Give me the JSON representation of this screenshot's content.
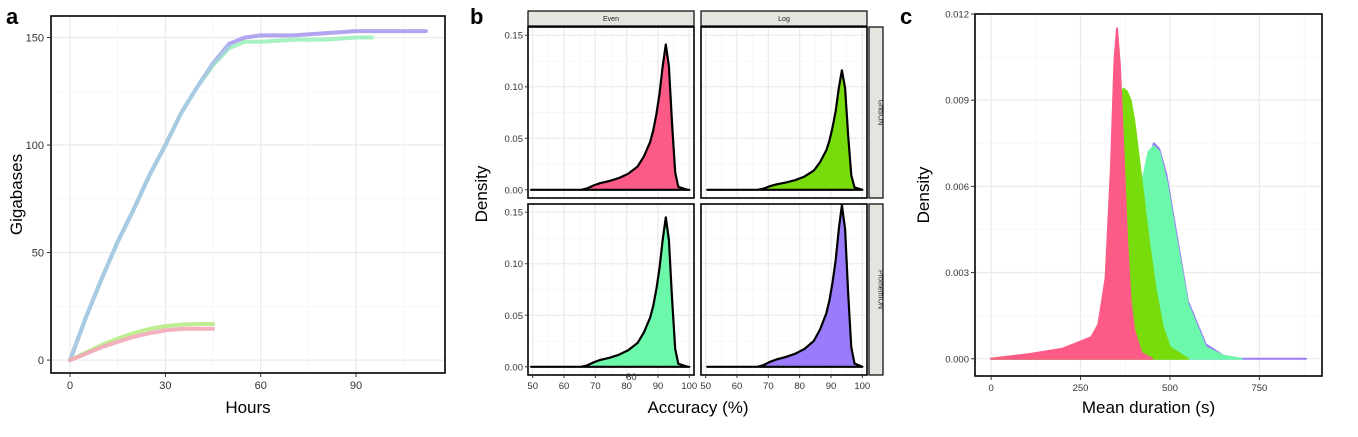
{
  "panels": {
    "a": {
      "letter": "a"
    },
    "b": {
      "letter": "b"
    },
    "c": {
      "letter": "c"
    }
  },
  "chart_data": [
    {
      "type": "line",
      "xlabel": "Hours",
      "ylabel": "Gigabases",
      "xlim": [
        -6,
        118
      ],
      "ylim": [
        -6,
        160
      ],
      "x_ticks": [
        0,
        30,
        60,
        90
      ],
      "y_ticks": [
        0,
        50,
        100,
        150
      ],
      "grid": true,
      "series": [
        {
          "color": "#a99bee",
          "x": [
            0,
            5,
            10,
            15,
            20,
            25,
            30,
            35,
            40,
            45,
            50,
            55,
            60,
            70,
            80,
            90,
            100,
            112
          ],
          "y": [
            0,
            20,
            38,
            55,
            70,
            86,
            100,
            115,
            127,
            138,
            147,
            150,
            151,
            151,
            152,
            153,
            153,
            153
          ]
        },
        {
          "color": "#9ff0bd",
          "x": [
            0,
            5,
            10,
            15,
            20,
            25,
            30,
            35,
            40,
            45,
            50,
            55,
            60,
            70,
            80,
            90,
            95
          ],
          "y": [
            0,
            20,
            38,
            55,
            70,
            86,
            100,
            115,
            127,
            137,
            145,
            148,
            148,
            149,
            149,
            150,
            150
          ]
        },
        {
          "color": "#a9c6e6",
          "x": [
            0,
            5,
            10,
            15,
            20,
            25,
            30,
            35,
            40,
            45,
            50
          ],
          "y": [
            0,
            20,
            38,
            55,
            70,
            86,
            100,
            115,
            127,
            138,
            146
          ]
        },
        {
          "color": "#b7eb86",
          "x": [
            0,
            5,
            10,
            15,
            20,
            25,
            30,
            35,
            40,
            45
          ],
          "y": [
            0,
            3.5,
            7,
            10,
            12.5,
            14.5,
            15.8,
            16.5,
            16.8,
            16.8
          ]
        },
        {
          "color": "#f2a7b8",
          "x": [
            0,
            5,
            10,
            15,
            20,
            25,
            30,
            35,
            40,
            45
          ],
          "y": [
            0,
            3,
            6,
            8.5,
            10.8,
            12.5,
            13.8,
            14.5,
            14.6,
            14.6
          ]
        }
      ]
    },
    {
      "type": "area",
      "xlabel": "Accuracy (%)",
      "ylabel": "Density",
      "xlim": [
        48.5,
        101.5
      ],
      "ylim": [
        -0.008,
        0.158
      ],
      "x_ticks": [
        50,
        60,
        70,
        80,
        90,
        100
      ],
      "y_ticks": [
        0.0,
        0.05,
        0.1,
        0.15
      ],
      "y_tick_labels": [
        "0.00",
        "0.05",
        "0.10",
        "0.15"
      ],
      "stray_label": {
        "text": "80",
        "x": 81.5,
        "y": -0.013
      },
      "facet_columns": [
        "Even",
        "Log"
      ],
      "facet_rows": [
        "GridION",
        "PromethION"
      ],
      "facets": [
        {
          "column": "Even",
          "row": "GridION",
          "color": "#fd5b87",
          "peak_x": 92.5,
          "peak_y": 0.141
        },
        {
          "column": "Log",
          "row": "GridION",
          "color": "#78db0b",
          "peak_x": 93.5,
          "peak_y": 0.116
        },
        {
          "column": "Even",
          "row": "PromethION",
          "color": "#6cf8ab",
          "peak_x": 92.5,
          "peak_y": 0.145
        },
        {
          "column": "Log",
          "row": "PromethION",
          "color": "#9a7bfb",
          "peak_x": 93.5,
          "peak_y": 0.157
        }
      ],
      "shared_curve_x": [
        50,
        66,
        68,
        70,
        72,
        75,
        78,
        81,
        84,
        86,
        88,
        89,
        90,
        91,
        92,
        93,
        94,
        95,
        96,
        97,
        100
      ],
      "shared_curve_fraction": [
        0,
        0,
        0.01,
        0.03,
        0.045,
        0.06,
        0.08,
        0.11,
        0.16,
        0.23,
        0.33,
        0.41,
        0.52,
        0.66,
        0.85,
        1.0,
        0.85,
        0.45,
        0.12,
        0.02,
        0
      ]
    },
    {
      "type": "area",
      "xlabel": "Mean duration (s)",
      "ylabel": "Density",
      "xlim": [
        -45,
        925
      ],
      "ylim": [
        -0.0006,
        0.012
      ],
      "x_ticks": [
        0,
        250,
        500,
        750
      ],
      "y_ticks": [
        0.0,
        0.003,
        0.006,
        0.009,
        0.012
      ],
      "y_tick_labels": [
        "0.000",
        "0.003",
        "0.006",
        "0.009",
        "0.012"
      ],
      "series": [
        {
          "color": "#9a7bfb",
          "x": [
            0,
            100,
            200,
            300,
            350,
            380,
            400,
            420,
            440,
            455,
            470,
            490,
            520,
            550,
            600,
            650,
            700,
            880
          ],
          "y": [
            0,
            0.0001,
            0.00022,
            0.0004,
            0.0008,
            0.0017,
            0.0033,
            0.0052,
            0.0068,
            0.0075,
            0.0073,
            0.0064,
            0.0042,
            0.002,
            0.0005,
            0.0001,
            0,
            0
          ]
        },
        {
          "color": "#6cf8ab",
          "x": [
            0,
            100,
            200,
            300,
            350,
            380,
            400,
            420,
            440,
            455,
            470,
            490,
            520,
            550,
            600,
            650,
            700
          ],
          "y": [
            0,
            0.0001,
            0.00022,
            0.0004,
            0.0008,
            0.0022,
            0.004,
            0.006,
            0.0072,
            0.0074,
            0.0072,
            0.0062,
            0.004,
            0.0019,
            0.0004,
            0.0001,
            0
          ]
        },
        {
          "color": "#78db0b",
          "x": [
            0,
            100,
            200,
            300,
            330,
            350,
            360,
            370,
            380,
            390,
            400,
            420,
            440,
            460,
            480,
            500,
            550
          ],
          "y": [
            0,
            0.00015,
            0.0003,
            0.0008,
            0.0022,
            0.0058,
            0.0088,
            0.0094,
            0.0093,
            0.009,
            0.0083,
            0.0063,
            0.0042,
            0.0024,
            0.0011,
            0.0004,
            0
          ]
        },
        {
          "color": "#fd5b87",
          "x": [
            0,
            100,
            200,
            280,
            300,
            320,
            335,
            345,
            352,
            360,
            370,
            380,
            390,
            400,
            420,
            450
          ],
          "y": [
            0,
            0.00015,
            0.00035,
            0.00075,
            0.0012,
            0.0028,
            0.0066,
            0.0104,
            0.0115,
            0.0102,
            0.0072,
            0.0042,
            0.002,
            0.001,
            0.0002,
            0
          ]
        }
      ]
    }
  ]
}
